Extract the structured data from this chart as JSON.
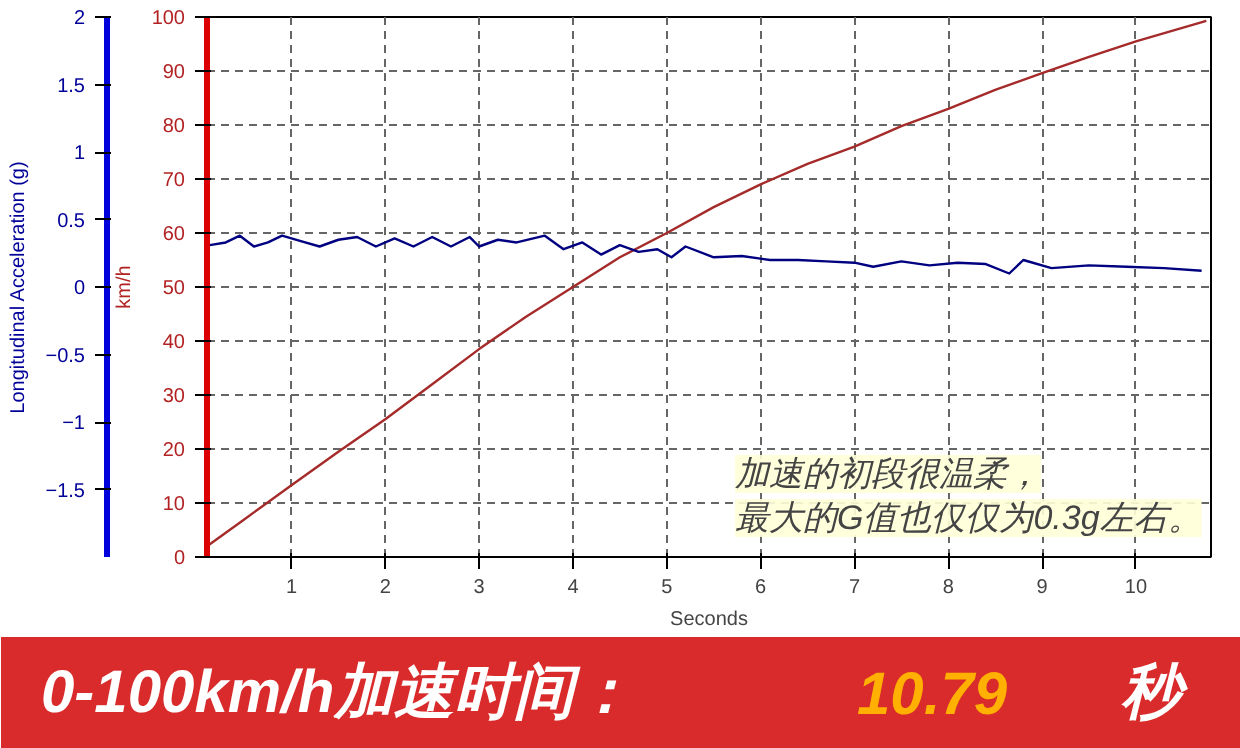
{
  "chart_data": {
    "type": "line",
    "xlabel": "Seconds",
    "ylabel": "km/h",
    "y2label": "Longitudinal Acceleration (g)",
    "x": [
      0.1,
      0.5,
      1,
      1.5,
      2,
      2.5,
      3,
      3.5,
      4,
      4.5,
      5,
      5.5,
      6,
      6.5,
      7,
      7.5,
      8,
      8.5,
      9,
      9.5,
      10,
      10.75
    ],
    "series": [
      {
        "name": null,
        "color": "#a52a2a",
        "values": [
          2,
          7,
          13.3,
          19.5,
          25.5,
          32,
          38.5,
          44.5,
          50,
          55.5,
          60,
          64.8,
          69,
          72.8,
          76,
          79.8,
          83,
          86.5,
          89.6,
          92.6,
          95.5,
          99.3
        ]
      },
      {
        "name": null,
        "color": "#000080",
        "axis": "y2",
        "x": [
          0.13,
          0.3,
          0.45,
          0.6,
          0.75,
          0.9,
          1.1,
          1.3,
          1.5,
          1.7,
          1.9,
          2.1,
          2.3,
          2.5,
          2.7,
          2.9,
          3.0,
          3.2,
          3.4,
          3.7,
          3.9,
          4.1,
          4.3,
          4.5,
          4.7,
          4.9,
          5.05,
          5.2,
          5.5,
          5.8,
          6.1,
          6.4,
          6.7,
          7.0,
          7.2,
          7.5,
          7.8,
          8.1,
          8.4,
          8.65,
          8.8,
          9.1,
          9.5,
          9.9,
          10.3,
          10.7
        ],
        "values": [
          0.31,
          0.33,
          0.38,
          0.3,
          0.33,
          0.38,
          0.34,
          0.3,
          0.35,
          0.37,
          0.3,
          0.36,
          0.3,
          0.37,
          0.3,
          0.37,
          0.3,
          0.35,
          0.33,
          0.38,
          0.28,
          0.33,
          0.24,
          0.31,
          0.26,
          0.28,
          0.22,
          0.3,
          0.22,
          0.23,
          0.2,
          0.2,
          0.19,
          0.18,
          0.15,
          0.19,
          0.16,
          0.18,
          0.17,
          0.1,
          0.2,
          0.14,
          0.16,
          0.15,
          0.14,
          0.12
        ]
      }
    ],
    "xlim": [
      0.1,
      10.8
    ],
    "xticks": [
      1,
      2,
      3,
      4,
      5,
      6,
      7,
      8,
      9,
      10
    ],
    "ylim": [
      0,
      100
    ],
    "yticks": [
      0,
      10,
      20,
      30,
      40,
      50,
      60,
      70,
      80,
      90,
      100
    ],
    "y2lim": [
      -2,
      2
    ],
    "y2ticks": [
      -1.5,
      -1,
      -0.5,
      0,
      0.5,
      1,
      1.5,
      2
    ],
    "grid": true,
    "annotations": [
      "加速的初段很温柔，",
      "最大的G值也仅仅为0.3g左右。",
      "0-100km/h加速时间：",
      "10.79",
      "秒"
    ]
  }
}
